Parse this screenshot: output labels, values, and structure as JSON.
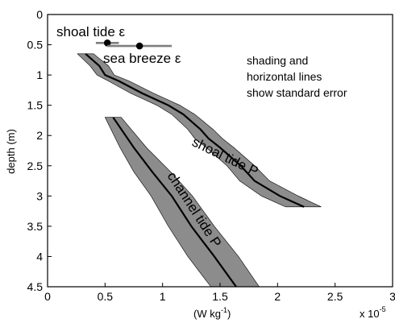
{
  "chart_data": {
    "type": "line",
    "title": "",
    "xlabel": "(W kg",
    "xlabel_exponent": "-1",
    "xlabel_close": ")",
    "ylabel": "depth (m)",
    "x_multiplier_label": "x 10",
    "x_multiplier_exponent": "-5",
    "xlim": [
      0,
      3
    ],
    "ylim": [
      4.5,
      0
    ],
    "x_ticks": [
      0,
      0.5,
      1,
      1.5,
      2,
      2.5,
      3
    ],
    "x_tick_labels": [
      "0",
      "0.5",
      "1",
      "1.5",
      "2",
      "2.5",
      "3"
    ],
    "y_ticks": [
      0,
      0.5,
      1,
      1.5,
      2,
      2.5,
      3,
      3.5,
      4,
      4.5
    ],
    "y_tick_labels": [
      "0",
      "0.5",
      "1",
      "1.5",
      "2",
      "2.5",
      "3",
      "3.5",
      "4",
      "4.5"
    ],
    "grid": false,
    "series": [
      {
        "name": "shoal tide P",
        "color": "#000000",
        "band_color": "#8c8c8c",
        "points": [
          {
            "depth": 0.65,
            "x": 0.33,
            "lo": 0.26,
            "hi": 0.4
          },
          {
            "depth": 0.85,
            "x": 0.45,
            "lo": 0.37,
            "hi": 0.53
          },
          {
            "depth": 1.0,
            "x": 0.5,
            "lo": 0.43,
            "hi": 0.58
          },
          {
            "depth": 1.1,
            "x": 0.62,
            "lo": 0.53,
            "hi": 0.71
          },
          {
            "depth": 1.3,
            "x": 0.82,
            "lo": 0.72,
            "hi": 0.92
          },
          {
            "depth": 1.5,
            "x": 1.05,
            "lo": 0.95,
            "hi": 1.15
          },
          {
            "depth": 1.65,
            "x": 1.18,
            "lo": 1.08,
            "hi": 1.28
          },
          {
            "depth": 1.9,
            "x": 1.33,
            "lo": 1.22,
            "hi": 1.44
          },
          {
            "depth": 2.05,
            "x": 1.4,
            "lo": 1.28,
            "hi": 1.52
          },
          {
            "depth": 2.2,
            "x": 1.5,
            "lo": 1.38,
            "hi": 1.62
          },
          {
            "depth": 2.5,
            "x": 1.68,
            "lo": 1.56,
            "hi": 1.8
          },
          {
            "depth": 2.75,
            "x": 1.8,
            "lo": 1.67,
            "hi": 1.93
          },
          {
            "depth": 3.0,
            "x": 2.02,
            "lo": 1.86,
            "hi": 2.18
          },
          {
            "depth": 3.18,
            "x": 2.23,
            "lo": 2.07,
            "hi": 2.38
          }
        ]
      },
      {
        "name": "channel tide P",
        "color": "#000000",
        "band_color": "#8c8c8c",
        "points": [
          {
            "depth": 1.7,
            "x": 0.57,
            "lo": 0.5,
            "hi": 0.64
          },
          {
            "depth": 2.2,
            "x": 0.75,
            "lo": 0.63,
            "hi": 0.86
          },
          {
            "depth": 2.6,
            "x": 0.91,
            "lo": 0.75,
            "hi": 1.07
          },
          {
            "depth": 3.0,
            "x": 1.08,
            "lo": 0.9,
            "hi": 1.26
          },
          {
            "depth": 3.5,
            "x": 1.25,
            "lo": 1.05,
            "hi": 1.45
          },
          {
            "depth": 4.0,
            "x": 1.45,
            "lo": 1.22,
            "hi": 1.66
          },
          {
            "depth": 4.5,
            "x": 1.64,
            "lo": 1.42,
            "hi": 1.84
          }
        ]
      }
    ],
    "points": [
      {
        "name": "shoal tide ε",
        "x": 0.52,
        "depth": 0.47,
        "err_lo": 0.42,
        "err_hi": 0.62
      },
      {
        "name": "sea breeze ε",
        "x": 0.8,
        "depth": 0.52,
        "err_lo": 0.52,
        "err_hi": 1.08
      }
    ],
    "annotations": [
      "shading and",
      "horizontal lines",
      "show standard error"
    ],
    "labels": {
      "shoal_tide_eps": "shoal tide ε",
      "sea_breeze_eps": "sea breeze ε",
      "shoal_tide_P": "shoal tide P",
      "channel_tide_P": "channel tide P"
    }
  }
}
